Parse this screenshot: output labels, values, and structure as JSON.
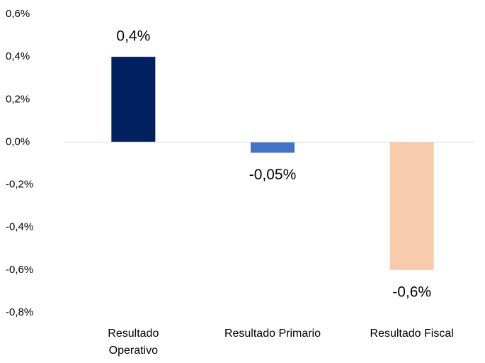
{
  "chart_data": {
    "type": "bar",
    "categories": [
      "Resultado Operativo",
      "Resultado Primario",
      "Resultado Fiscal"
    ],
    "values": [
      0.4,
      -0.05,
      -0.6
    ],
    "value_labels": [
      "0,4%",
      "-0,05%",
      "-0,6%"
    ],
    "colors": [
      "#002060",
      "#4472c4",
      "#f8cbad"
    ],
    "ylim": [
      -0.8,
      0.6
    ],
    "yticks": [
      {
        "value": 0.6,
        "label": "0,6%"
      },
      {
        "value": 0.4,
        "label": "0,4%"
      },
      {
        "value": 0.2,
        "label": "0,2%"
      },
      {
        "value": 0,
        "label": "0,0%"
      },
      {
        "value": -0.2,
        "label": "-0,2%"
      },
      {
        "value": -0.4,
        "label": "-0,4%"
      },
      {
        "value": -0.6,
        "label": "-0,6%"
      },
      {
        "value": -0.8,
        "label": "-0,8%"
      }
    ],
    "grid": false
  }
}
